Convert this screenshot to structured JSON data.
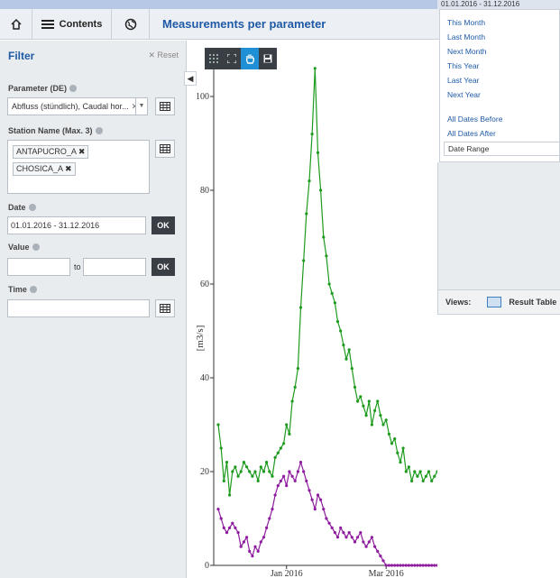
{
  "header": {
    "contents_label": "Contents",
    "page_title": "Measurements per parameter"
  },
  "filter": {
    "title": "Filter",
    "reset_label": "Reset",
    "parameter_label": "Parameter (DE)",
    "parameter_value": "Abfluss (stündlich), Caudal hor...",
    "station_label": "Station Name (Max. 3)",
    "stations": [
      "ANTAPUCRO_A",
      "CHOSICA_A"
    ],
    "date_label": "Date",
    "date_value": "01.01.2016 - 31.12.2016",
    "ok_label": "OK",
    "value_label": "Value",
    "to_label": "to",
    "time_label": "Time"
  },
  "date_dropdown": {
    "current": "01.01.2016 - 31.12.2016",
    "items": [
      "This Month",
      "Last Month",
      "Next Month",
      "This Year",
      "Last Year",
      "Next Year"
    ],
    "items2": [
      "All Dates Before",
      "All Dates After"
    ],
    "range_label": "Date Range"
  },
  "views": {
    "label": "Views:",
    "result_table": "Result Table"
  },
  "chart_data": {
    "type": "line",
    "ylabel": "[m3/s]",
    "xlabel": "",
    "ylim": [
      0,
      110
    ],
    "yticks": [
      0,
      20,
      40,
      60,
      80,
      100
    ],
    "xticks": [
      "Jan 2016",
      "Mar 2016"
    ],
    "colors": {
      "green": "#1e9b1e",
      "purple": "#8e1c9e"
    },
    "series": [
      {
        "color": "#1e9b1e",
        "values": [
          [
            0,
            30
          ],
          [
            2,
            25
          ],
          [
            4,
            18
          ],
          [
            6,
            22
          ],
          [
            8,
            15
          ],
          [
            10,
            20
          ],
          [
            12,
            21
          ],
          [
            14,
            19
          ],
          [
            16,
            20
          ],
          [
            18,
            22
          ],
          [
            20,
            21
          ],
          [
            22,
            20
          ],
          [
            24,
            19
          ],
          [
            26,
            20
          ],
          [
            28,
            18
          ],
          [
            30,
            21
          ],
          [
            32,
            20
          ],
          [
            34,
            22
          ],
          [
            36,
            20
          ],
          [
            38,
            19
          ],
          [
            40,
            23
          ],
          [
            42,
            24
          ],
          [
            44,
            25
          ],
          [
            46,
            26
          ],
          [
            48,
            30
          ],
          [
            50,
            28
          ],
          [
            52,
            35
          ],
          [
            54,
            38
          ],
          [
            56,
            42
          ],
          [
            58,
            55
          ],
          [
            60,
            65
          ],
          [
            62,
            75
          ],
          [
            64,
            82
          ],
          [
            66,
            92
          ],
          [
            68,
            106
          ],
          [
            70,
            88
          ],
          [
            72,
            80
          ],
          [
            74,
            70
          ],
          [
            76,
            66
          ],
          [
            78,
            60
          ],
          [
            80,
            58
          ],
          [
            82,
            56
          ],
          [
            84,
            52
          ],
          [
            86,
            50
          ],
          [
            88,
            47
          ],
          [
            90,
            44
          ],
          [
            92,
            46
          ],
          [
            94,
            42
          ],
          [
            96,
            38
          ],
          [
            98,
            35
          ],
          [
            100,
            36
          ],
          [
            102,
            34
          ],
          [
            104,
            32
          ],
          [
            106,
            35
          ],
          [
            108,
            30
          ],
          [
            110,
            33
          ],
          [
            112,
            35
          ],
          [
            114,
            32
          ],
          [
            116,
            30
          ],
          [
            118,
            31
          ],
          [
            120,
            28
          ],
          [
            122,
            26
          ],
          [
            124,
            27
          ],
          [
            126,
            24
          ],
          [
            128,
            22
          ],
          [
            130,
            25
          ],
          [
            132,
            20
          ],
          [
            134,
            21
          ],
          [
            136,
            18
          ],
          [
            138,
            20
          ],
          [
            140,
            19
          ],
          [
            142,
            20
          ],
          [
            144,
            18
          ],
          [
            146,
            19
          ],
          [
            148,
            20
          ],
          [
            150,
            18
          ],
          [
            152,
            19
          ],
          [
            154,
            20
          ]
        ]
      },
      {
        "color": "#8e1c9e",
        "values": [
          [
            0,
            12
          ],
          [
            2,
            10
          ],
          [
            4,
            8
          ],
          [
            6,
            7
          ],
          [
            8,
            8
          ],
          [
            10,
            9
          ],
          [
            12,
            8
          ],
          [
            14,
            7
          ],
          [
            16,
            4
          ],
          [
            18,
            5
          ],
          [
            20,
            6
          ],
          [
            22,
            3
          ],
          [
            24,
            2
          ],
          [
            26,
            4
          ],
          [
            28,
            3
          ],
          [
            30,
            5
          ],
          [
            32,
            6
          ],
          [
            34,
            8
          ],
          [
            36,
            10
          ],
          [
            38,
            12
          ],
          [
            40,
            15
          ],
          [
            42,
            17
          ],
          [
            44,
            18
          ],
          [
            46,
            19
          ],
          [
            48,
            17
          ],
          [
            50,
            20
          ],
          [
            52,
            19
          ],
          [
            54,
            18
          ],
          [
            56,
            20
          ],
          [
            58,
            22
          ],
          [
            60,
            20
          ],
          [
            62,
            18
          ],
          [
            64,
            16
          ],
          [
            66,
            14
          ],
          [
            68,
            12
          ],
          [
            70,
            15
          ],
          [
            72,
            14
          ],
          [
            74,
            12
          ],
          [
            76,
            10
          ],
          [
            78,
            9
          ],
          [
            80,
            8
          ],
          [
            82,
            7
          ],
          [
            84,
            6
          ],
          [
            86,
            8
          ],
          [
            88,
            7
          ],
          [
            90,
            6
          ],
          [
            92,
            7
          ],
          [
            94,
            6
          ],
          [
            96,
            5
          ],
          [
            98,
            6
          ],
          [
            100,
            7
          ],
          [
            102,
            5
          ],
          [
            104,
            4
          ],
          [
            106,
            5
          ],
          [
            108,
            6
          ],
          [
            110,
            4
          ],
          [
            112,
            3
          ],
          [
            114,
            2
          ],
          [
            116,
            1
          ],
          [
            118,
            0
          ],
          [
            120,
            0
          ],
          [
            122,
            0
          ],
          [
            124,
            0
          ],
          [
            126,
            0
          ],
          [
            128,
            0
          ],
          [
            130,
            0
          ],
          [
            132,
            0
          ],
          [
            134,
            0
          ],
          [
            136,
            0
          ],
          [
            138,
            0
          ],
          [
            140,
            0
          ],
          [
            142,
            0
          ],
          [
            144,
            0
          ],
          [
            146,
            0
          ],
          [
            148,
            0
          ],
          [
            150,
            0
          ],
          [
            152,
            0
          ],
          [
            154,
            0
          ]
        ]
      }
    ]
  }
}
